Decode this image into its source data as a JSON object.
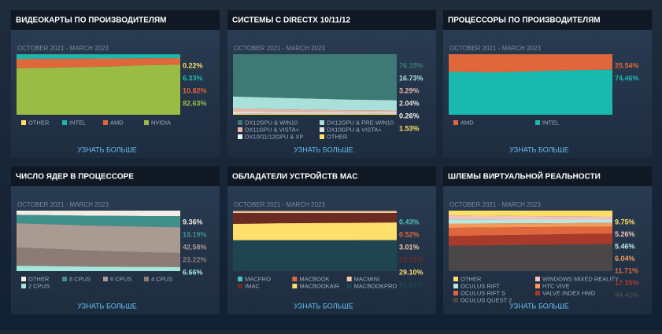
{
  "chart_data": [
    {
      "type": "area",
      "title": "ВИДЕОКАРТЫ ПО ПРОИЗВОДИТЕЛЯМ",
      "subtitle": "OCTOBER 2021 - MARCH 2023",
      "ylim": [
        0,
        100
      ],
      "link": "УЗНАТЬ БОЛЬШЕ",
      "series": [
        {
          "name": "OTHER",
          "color": "#ffe066",
          "values": [
            0.3,
            0.3,
            0.25,
            0.25,
            0.2,
            0.2,
            0.2,
            0.22
          ],
          "value_label": "0.22%"
        },
        {
          "name": "INTEL",
          "color": "#1ab9b0",
          "values": [
            7.5,
            7.4,
            7.2,
            7,
            6.9,
            6.7,
            6.5,
            6.33
          ],
          "value_label": "6.33%"
        },
        {
          "name": "AMD",
          "color": "#e0663b",
          "values": [
            15.2,
            15,
            14.5,
            14,
            13.2,
            12,
            11.2,
            10.82
          ],
          "value_label": "10.82%"
        },
        {
          "name": "NVIDIA",
          "color": "#9abc45",
          "values": [
            77,
            77.3,
            78,
            78.7,
            79.7,
            81.1,
            82.1,
            82.63
          ],
          "value_label": "82.63%"
        }
      ]
    },
    {
      "type": "area",
      "title": "СИСТЕМЫ С DIRECTX 10/11/12",
      "subtitle": "OCTOBER 2021 - MARCH 2023",
      "ylim": [
        0,
        100
      ],
      "link": "УЗНАТЬ БОЛЬШЕ",
      "series": [
        {
          "name": "DX12GPU & WIN10",
          "color": "#3d7a75",
          "values": [
            70,
            71,
            72,
            73,
            74,
            75,
            75.5,
            76.15
          ],
          "value_label": "76.15%"
        },
        {
          "name": "DX12GPU & PRE-WIN10",
          "color": "#a9e0d9",
          "values": [
            20,
            19.5,
            19,
            18.5,
            18,
            17.5,
            17,
            16.73
          ],
          "value_label": "16.73%"
        },
        {
          "name": "DX11GPU & VISTA+",
          "color": "#e6b7a8",
          "values": [
            5.5,
            5,
            4.7,
            4.3,
            4,
            3.7,
            3.4,
            3.29
          ],
          "value_label": "3.29%"
        },
        {
          "name": "DX10GPU & VISTA+",
          "color": "#e8e4dc",
          "values": [
            2.5,
            2.4,
            2.3,
            2.2,
            2.1,
            2.1,
            2.05,
            2.04
          ],
          "value_label": "2.04%"
        },
        {
          "name": "DX10/11/12GPU & XP",
          "color": "#f4f0ea",
          "values": [
            0.5,
            0.45,
            0.4,
            0.4,
            0.35,
            0.3,
            0.3,
            0.26
          ],
          "value_label": "0.26%"
        },
        {
          "name": "OTHER",
          "color": "#ffe066",
          "values": [
            1.5,
            1.65,
            1.6,
            1.6,
            1.55,
            1.4,
            1.75,
            1.53
          ],
          "value_label": "1.53%"
        }
      ]
    },
    {
      "type": "area",
      "title": "ПРОЦЕССОРЫ ПО ПРОИЗВОДИТЕЛЯМ",
      "subtitle": "OCTOBER 2021 - MARCH 2023",
      "ylim": [
        0,
        100
      ],
      "link": "УЗНАТЬ БОЛЬШЕ",
      "series": [
        {
          "name": "AMD",
          "color": "#e0663b",
          "values": [
            29,
            29.5,
            30,
            29,
            28,
            27,
            26,
            25.54
          ],
          "value_label": "25.54%"
        },
        {
          "name": "INTEL",
          "color": "#1ab9b0",
          "values": [
            71,
            70.5,
            70,
            71,
            72,
            73,
            74,
            74.46
          ],
          "value_label": "74.46%"
        }
      ]
    },
    {
      "type": "area",
      "title": "ЧИСЛО ЯДЕР В ПРОЦЕССОРЕ",
      "subtitle": "OCTOBER 2021 - MARCH 2023",
      "ylim": [
        0,
        100
      ],
      "link": "УЗНАТЬ БОЛЬШЕ",
      "series": [
        {
          "name": "OTHER",
          "color": "#f1ece4",
          "values": [
            7,
            7.5,
            8,
            8.5,
            8.8,
            9,
            9.2,
            9.36
          ],
          "value_label": "9.36%"
        },
        {
          "name": "8 CPUS",
          "color": "#3f8f8a",
          "values": [
            14,
            14.5,
            15,
            16,
            16.5,
            17.2,
            17.8,
            18.19
          ],
          "value_label": "18.19%"
        },
        {
          "name": "6 CPUS",
          "color": "#a99a92",
          "values": [
            40,
            40.5,
            41,
            41.5,
            42,
            42.2,
            42.4,
            42.58
          ],
          "value_label": "42.58%"
        },
        {
          "name": "4 CPUS",
          "color": "#8d7c76",
          "values": [
            30,
            29,
            28,
            26.5,
            25.5,
            24.6,
            23.6,
            23.22
          ],
          "value_label": "23.22%"
        },
        {
          "name": "2 CPUS",
          "color": "#a6e6dc",
          "values": [
            9,
            8.5,
            8,
            7.5,
            7.2,
            7,
            7,
            6.66
          ],
          "value_label": "6.66%"
        }
      ]
    },
    {
      "type": "area",
      "title": "ОБЛАДАТЕЛИ УСТРОЙСТВ MAC",
      "subtitle": "OCTOBER 2021 - MARCH 2023",
      "ylim": [
        0,
        100
      ],
      "link": "УЗНАТЬ БОЛЬШЕ",
      "series": [
        {
          "name": "MACPRO",
          "color": "#4fc2b6",
          "values": [
            0.6,
            0.6,
            0.5,
            0.5,
            0.5,
            0.45,
            0.45,
            0.43
          ],
          "value_label": "0.43%"
        },
        {
          "name": "MACBOOK",
          "color": "#e0663b",
          "values": [
            1,
            0.9,
            0.8,
            0.7,
            0.6,
            0.6,
            0.55,
            0.52
          ],
          "value_label": "0.52%"
        },
        {
          "name": "MACMINI",
          "color": "#f2c9a0",
          "values": [
            2.5,
            2.6,
            2.7,
            2.8,
            2.9,
            3,
            3,
            3.01
          ],
          "value_label": "3.01%"
        },
        {
          "name": "IMAC",
          "color": "#6b2a22",
          "values": [
            18,
            17.5,
            17,
            16.8,
            16.5,
            16.2,
            15.9,
            15.73
          ],
          "value_label": "15.73%"
        },
        {
          "name": "MACBOOKAIR",
          "color": "#ffdf6b",
          "values": [
            27,
            27.5,
            28,
            28.2,
            28.5,
            28.8,
            29,
            29.1
          ],
          "value_label": "29.10%"
        },
        {
          "name": "MACBOOKPRO",
          "color": "#1f4550",
          "values": [
            50.4,
            50.9,
            51,
            51,
            51,
            50.95,
            51.1,
            51.21
          ],
          "value_label": "51.21%"
        }
      ]
    },
    {
      "type": "area",
      "title": "ШЛЕМЫ ВИРТУАЛЬНОЙ РЕАЛЬНОСТИ",
      "subtitle": "OCTOBER 2021 - MARCH 2023",
      "ylim": [
        0,
        100
      ],
      "link": "УЗНАТЬ БОЛЬШЕ",
      "series": [
        {
          "name": "OTHER",
          "color": "#ffe066",
          "values": [
            8,
            8.3,
            8.6,
            9,
            9.2,
            9.4,
            9.6,
            9.75
          ],
          "value_label": "9.75%"
        },
        {
          "name": "WINDOWS MIXED REALITY",
          "color": "#f2c2bc",
          "values": [
            6.5,
            6.3,
            6.1,
            5.9,
            5.7,
            5.5,
            5.3,
            5.26
          ],
          "value_label": "5.26%"
        },
        {
          "name": "OCULUS RIFT",
          "color": "#b9e8df",
          "values": [
            7,
            6.8,
            6.5,
            6.2,
            6,
            5.8,
            5.6,
            5.46
          ],
          "value_label": "5.46%"
        },
        {
          "name": "HTC VIVE",
          "color": "#f19a5c",
          "values": [
            7,
            6.9,
            6.7,
            6.5,
            6.4,
            6.2,
            6.1,
            6.04
          ],
          "value_label": "6.04%"
        },
        {
          "name": "OCULUS RIFT S",
          "color": "#e0663b",
          "values": [
            13.5,
            13.3,
            13,
            12.7,
            12.4,
            12.1,
            11.9,
            11.71
          ],
          "value_label": "11.71%"
        },
        {
          "name": "VALVE INDEX HMD",
          "color": "#a83a2c",
          "values": [
            16,
            16.2,
            16.5,
            16.7,
            16.9,
            17.1,
            17.3,
            17.35
          ],
          "value_label": "17.35%"
        },
        {
          "name": "OCULUS QUEST 2",
          "color": "#4a4748",
          "values": [
            42,
            42.2,
            42.6,
            43,
            43.4,
            43.9,
            44.2,
            44.41
          ],
          "value_label": "44.41%"
        }
      ]
    }
  ]
}
